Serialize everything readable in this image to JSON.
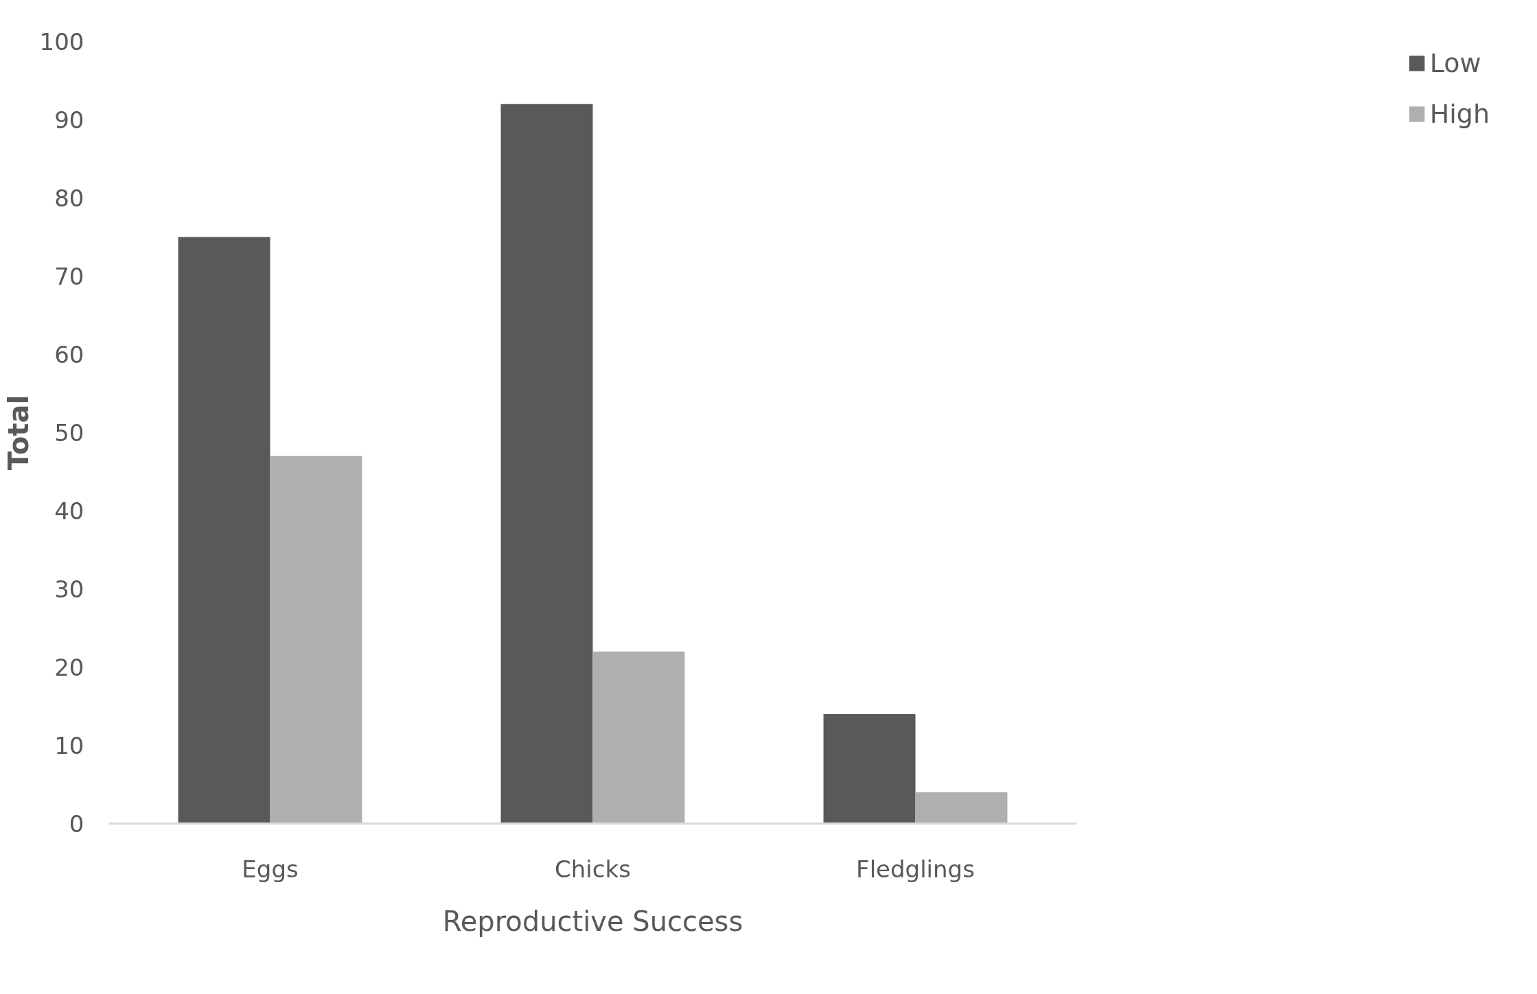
{
  "chart_data": {
    "type": "bar",
    "xlabel": "Reproductive Success",
    "ylabel": "Total",
    "categories": [
      "Eggs",
      "Chicks",
      "Fledglings"
    ],
    "series": [
      {
        "name": "Low",
        "color": "#595959",
        "values": [
          75,
          92,
          14
        ]
      },
      {
        "name": "High",
        "color": "#afafaf",
        "values": [
          47,
          22,
          4
        ]
      }
    ],
    "ylim": [
      0,
      100
    ],
    "yticks": [
      0,
      10,
      20,
      30,
      40,
      50,
      60,
      70,
      80,
      90,
      100
    ],
    "grid": false,
    "legend": "right"
  }
}
